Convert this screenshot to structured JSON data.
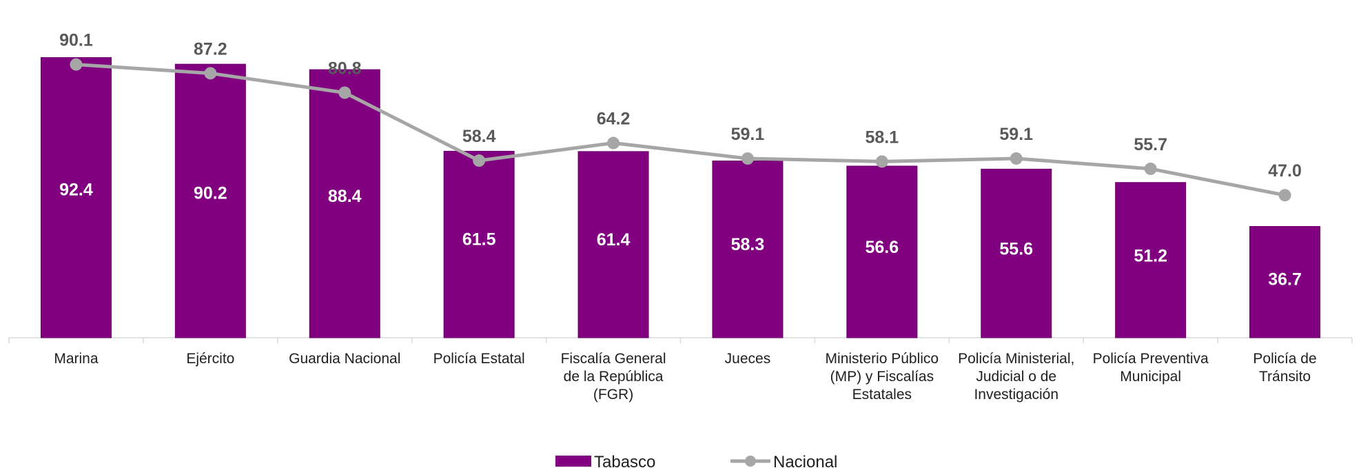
{
  "chart_data": {
    "type": "bar",
    "categories": [
      [
        "Marina"
      ],
      [
        "Ejército"
      ],
      [
        "Guardia Nacional"
      ],
      [
        "Policía Estatal"
      ],
      [
        "Fiscalía General",
        "de la República",
        "(FGR)"
      ],
      [
        "Jueces"
      ],
      [
        "Ministerio Público",
        "(MP) y Fiscalías",
        "Estatales"
      ],
      [
        "Policía Ministerial,",
        "Judicial o de",
        "Investigación"
      ],
      [
        "Policía Preventiva",
        "Municipal"
      ],
      [
        "Policía de",
        "Tránsito"
      ]
    ],
    "series": [
      {
        "name": "Tabasco",
        "type": "bar",
        "color": "#800080",
        "values": [
          92.4,
          90.2,
          88.4,
          61.5,
          61.4,
          58.3,
          56.6,
          55.6,
          51.2,
          36.7
        ],
        "labels": [
          "92.4",
          "90.2",
          "88.4",
          "61.5",
          "61.4",
          "58.3",
          "56.6",
          "55.6",
          "51.2",
          "36.7"
        ]
      },
      {
        "name": "Nacional",
        "type": "line",
        "color": "#a6a6a6",
        "values": [
          90.1,
          87.2,
          80.8,
          58.4,
          64.2,
          59.1,
          58.1,
          59.1,
          55.7,
          47.0
        ],
        "labels": [
          "90.1",
          "87.2",
          "80.8",
          "58.4",
          "64.2",
          "59.1",
          "58.1",
          "59.1",
          "55.7",
          "47.0"
        ]
      }
    ],
    "ylim": [
      0,
      100
    ],
    "grid": false,
    "legend": "bottom-center"
  }
}
